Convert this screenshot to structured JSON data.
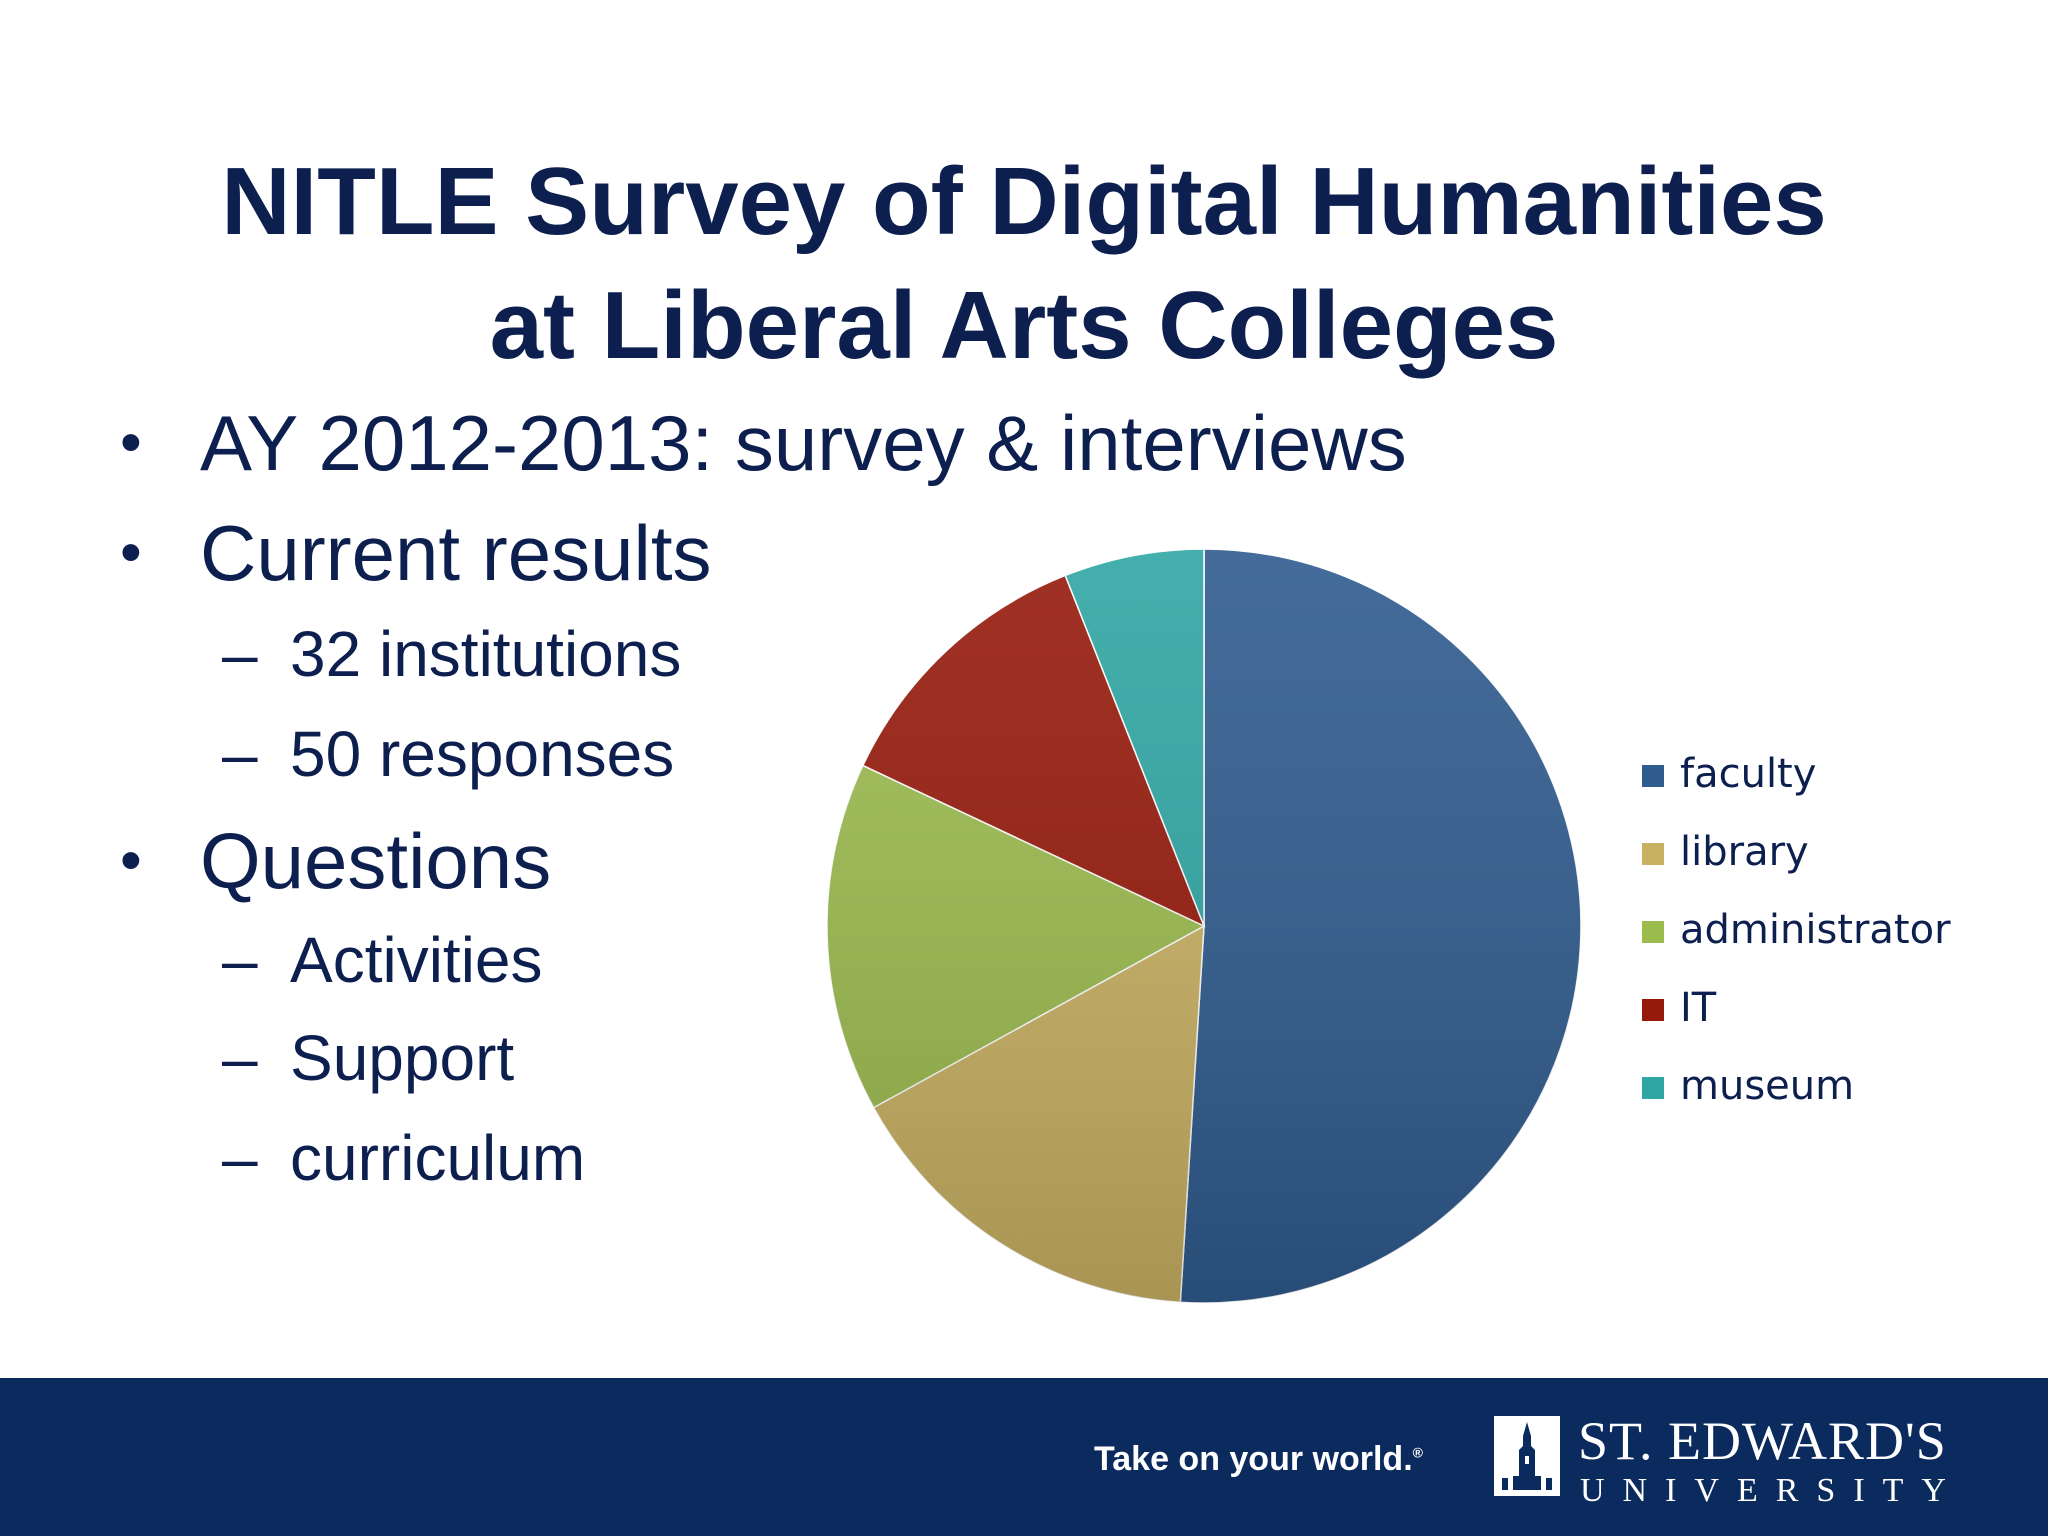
{
  "title": {
    "line1": "NITLE Survey of Digital Humanities",
    "line2": "at Liberal Arts Colleges"
  },
  "bullets": [
    {
      "text": "AY 2012-2013: survey & interviews",
      "subs": []
    },
    {
      "text": "Current results",
      "subs": [
        "32 institutions",
        "50 responses"
      ]
    },
    {
      "text": "Questions",
      "subs": [
        "Activities",
        "Support",
        "curriculum"
      ]
    }
  ],
  "bullet_glyph": "•",
  "sub_glyph": "–",
  "chart_data": {
    "type": "pie",
    "legend_position": "right",
    "categories": [
      "faculty",
      "library",
      "administrator",
      "IT",
      "museum"
    ],
    "values": [
      51,
      16,
      15,
      12,
      6
    ],
    "colors": [
      "#2f5b8e",
      "#c9b163",
      "#9bbb4e",
      "#961a0c",
      "#2fa6a3"
    ]
  },
  "footer": {
    "tagline": "Take on your world.",
    "tagline_mark": "®",
    "logo_name": "ST. EDWARD'S",
    "logo_sub": "UNIVERSITY",
    "logo_icon": "tower-icon",
    "background": "#0b2a5e"
  }
}
